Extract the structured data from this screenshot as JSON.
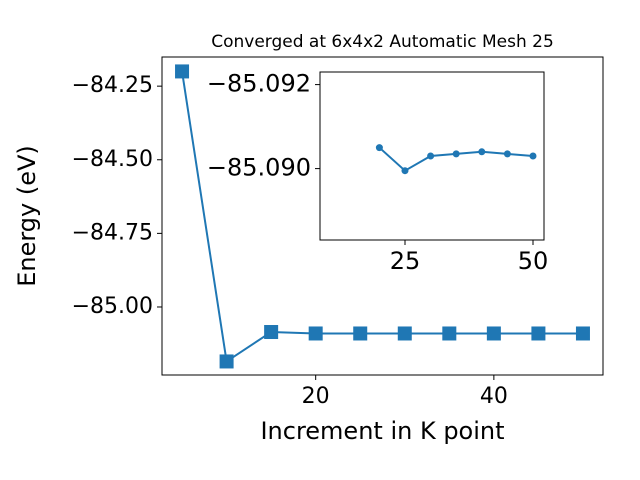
{
  "chart_data": [
    {
      "type": "line",
      "title": "Converged at 6x4x2 Automatic Mesh 25",
      "xlabel": "Increment in K point",
      "ylabel": "Energy (eV)",
      "x": [
        5,
        10,
        15,
        20,
        25,
        30,
        35,
        40,
        45,
        50
      ],
      "series": [
        {
          "color": "#1f77b4",
          "marker": "square",
          "values": [
            -84.2,
            -85.185,
            -85.085,
            -85.09,
            -85.09,
            -85.09,
            -85.09,
            -85.09,
            -85.09,
            -85.09
          ]
        }
      ],
      "xlim": [
        2.75,
        52.25
      ],
      "ylim": [
        -85.231,
        -84.151
      ],
      "xticks": [
        20,
        40
      ],
      "yticks": [
        {
          "value": -85.0,
          "label": "−85.00"
        },
        {
          "value": -84.75,
          "label": "−84.75"
        },
        {
          "value": -84.5,
          "label": "−84.50"
        },
        {
          "value": -84.25,
          "label": "−84.25"
        }
      ]
    },
    {
      "type": "line",
      "x": [
        20,
        25,
        30,
        35,
        40,
        45,
        50
      ],
      "series": [
        {
          "color": "#1f77b4",
          "marker": "circle",
          "values": [
            -85.0905,
            -85.08995,
            -85.0903,
            -85.09035,
            -85.0904,
            -85.09035,
            -85.0903
          ]
        }
      ],
      "xlim": [
        8.4,
        52.15
      ],
      "ylim": [
        -85.0883,
        -85.0923
      ],
      "xticks": [
        25,
        50
      ],
      "yticks": [
        {
          "value": -85.09,
          "label": "−85.090"
        },
        {
          "value": -85.092,
          "label": "−85.092"
        }
      ]
    }
  ]
}
